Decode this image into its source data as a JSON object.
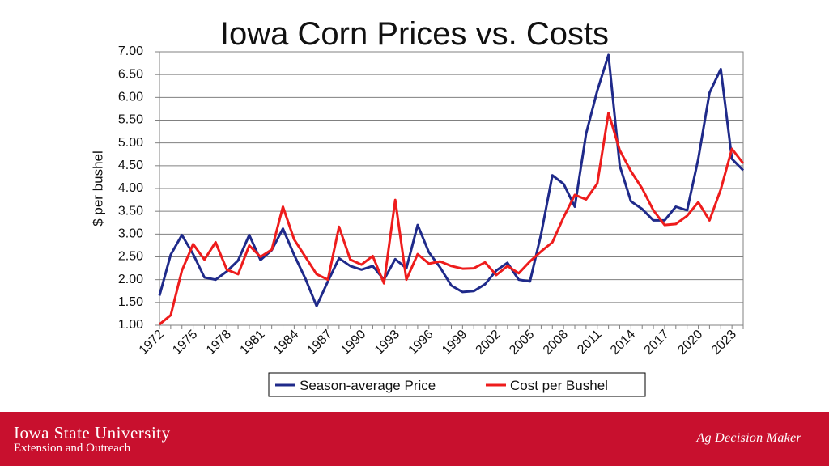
{
  "title": "Iowa Corn Prices vs. Costs",
  "footer": {
    "org_name": "Iowa State University",
    "org_sub": "Extension and Outreach",
    "logo_text": "Ag Decision Maker"
  },
  "colors": {
    "footer_bg": "#c8102e",
    "price_line": "#1f2a8a",
    "cost_line": "#ee1c1c",
    "grid": "#808080"
  },
  "chart_data": {
    "type": "line",
    "title": "Iowa Corn Prices vs. Costs",
    "xlabel": "",
    "ylabel": "$ per bushel",
    "ylim": [
      1.0,
      7.0
    ],
    "y_ticks": [
      "1.00",
      "1.50",
      "2.00",
      "2.50",
      "3.00",
      "3.50",
      "4.00",
      "4.50",
      "5.00",
      "5.50",
      "6.00",
      "6.50",
      "7.00"
    ],
    "x_ticks": [
      "1972",
      "1975",
      "1978",
      "1981",
      "1984",
      "1987",
      "1990",
      "1993",
      "1996",
      "1999",
      "2002",
      "2005",
      "2008",
      "2011",
      "2014",
      "2017",
      "2020",
      "2023"
    ],
    "x": [
      1972,
      1973,
      1974,
      1975,
      1976,
      1977,
      1978,
      1979,
      1980,
      1981,
      1982,
      1983,
      1984,
      1985,
      1986,
      1987,
      1988,
      1989,
      1990,
      1991,
      1992,
      1993,
      1994,
      1995,
      1996,
      1997,
      1998,
      1999,
      2000,
      2001,
      2002,
      2003,
      2004,
      2005,
      2006,
      2007,
      2008,
      2009,
      2010,
      2011,
      2012,
      2013,
      2014,
      2015,
      2016,
      2017,
      2018,
      2019,
      2020,
      2021,
      2022,
      2023,
      2024
    ],
    "series": [
      {
        "name": "Season-average Price",
        "color": "#1f2a8a",
        "values": [
          1.65,
          2.55,
          2.98,
          2.56,
          2.05,
          2.0,
          2.18,
          2.42,
          2.98,
          2.43,
          2.65,
          3.12,
          2.54,
          2.02,
          1.42,
          1.96,
          2.47,
          2.3,
          2.22,
          2.3,
          2.0,
          2.45,
          2.25,
          3.2,
          2.6,
          2.27,
          1.87,
          1.73,
          1.75,
          1.9,
          2.2,
          2.37,
          2.0,
          1.96,
          3.0,
          4.29,
          4.1,
          3.6,
          5.2,
          6.15,
          6.93,
          4.5,
          3.72,
          3.55,
          3.3,
          3.3,
          3.6,
          3.52,
          4.65,
          6.1,
          6.62,
          4.65,
          4.4
        ]
      },
      {
        "name": "Cost per Bushel",
        "color": "#ee1c1c",
        "values": [
          1.02,
          1.22,
          2.2,
          2.78,
          2.44,
          2.82,
          2.22,
          2.12,
          2.75,
          2.5,
          2.66,
          3.6,
          2.88,
          2.5,
          2.12,
          2.0,
          3.16,
          2.44,
          2.33,
          2.52,
          1.92,
          3.75,
          2.0,
          2.56,
          2.35,
          2.4,
          2.3,
          2.24,
          2.25,
          2.38,
          2.1,
          2.3,
          2.14,
          2.4,
          2.62,
          2.82,
          3.37,
          3.86,
          3.76,
          4.11,
          5.66,
          4.84,
          4.38,
          4.0,
          3.52,
          3.2,
          3.22,
          3.4,
          3.7,
          3.3,
          3.98,
          4.87,
          4.55
        ]
      }
    ],
    "grid": true,
    "legend_position": "bottom"
  }
}
